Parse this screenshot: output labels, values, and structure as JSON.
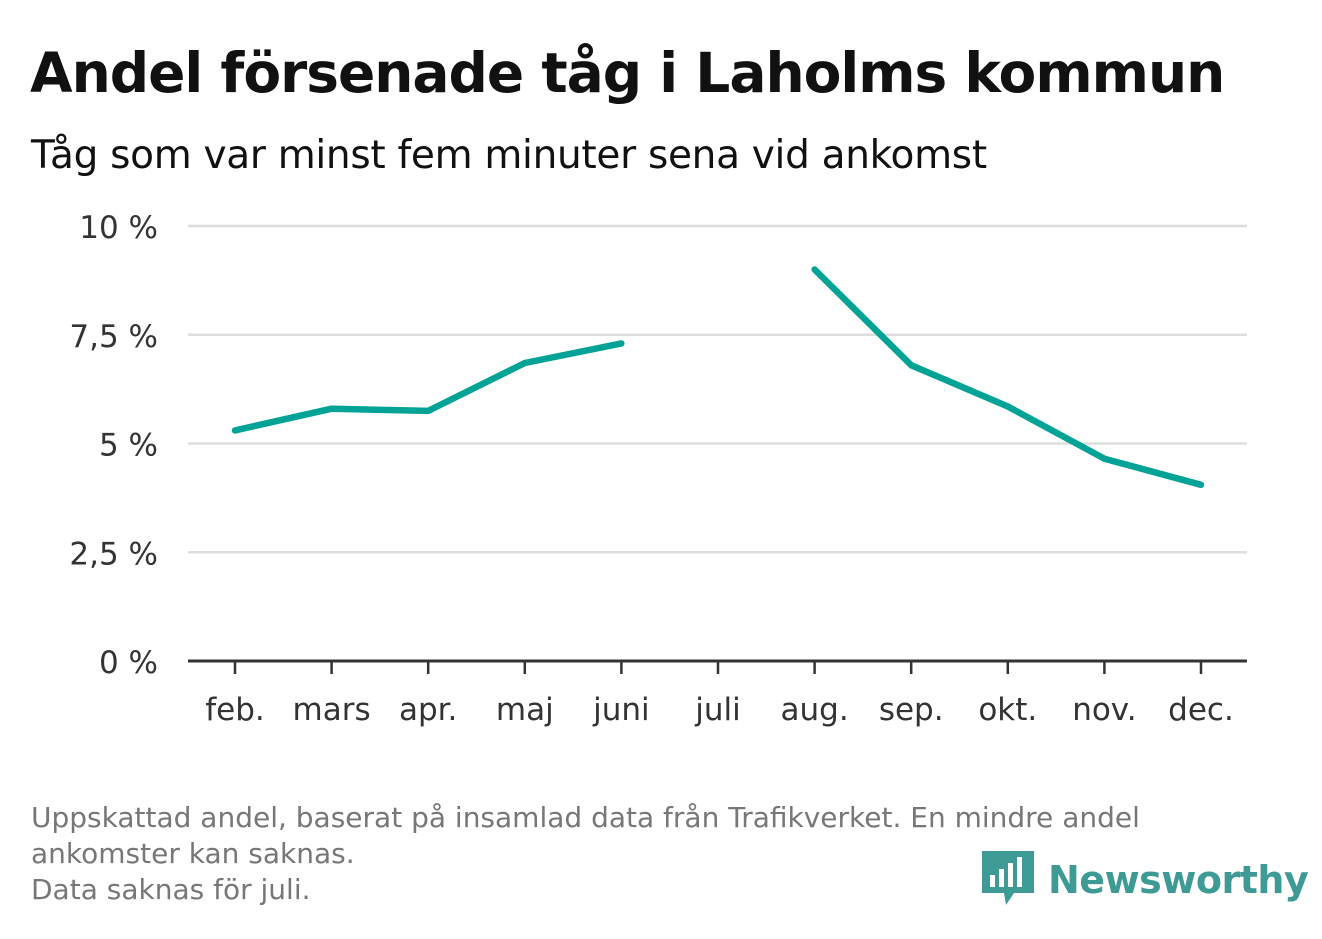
{
  "header": {
    "title": "Andel försenade tåg i Laholms kommun",
    "subtitle": "Tåg som var minst fem minuter sena vid ankomst"
  },
  "footnote": {
    "line1": "Uppskattad andel, baserat på insamlad data från Trafikverket. En mindre andel",
    "line2": "ankomster kan saknas.",
    "line3": "Data saknas för juli."
  },
  "brand": {
    "name": "Newsworthy",
    "logo_icon": "bar-chart-speech-bubble-icon",
    "color": "#3d9a94"
  },
  "chart_data": {
    "type": "line",
    "categories": [
      "feb.",
      "mars",
      "apr.",
      "maj",
      "juni",
      "juli",
      "aug.",
      "sep.",
      "okt.",
      "nov.",
      "dec."
    ],
    "series": [
      {
        "values": [
          5.3,
          5.8,
          5.75,
          6.85,
          7.3,
          null,
          9.0,
          6.8,
          5.85,
          4.65,
          4.05
        ],
        "color": "#00a396"
      }
    ],
    "y_ticks": [
      "0 %",
      "2,5 %",
      "5 %",
      "7,5 %",
      "10 %"
    ],
    "y_tick_values": [
      0,
      2.5,
      5,
      7.5,
      10
    ],
    "ylim": [
      0,
      10
    ],
    "grid": true,
    "grid_color": "#dddddd",
    "axis_color": "#333333",
    "xlabel": "",
    "ylabel": ""
  }
}
